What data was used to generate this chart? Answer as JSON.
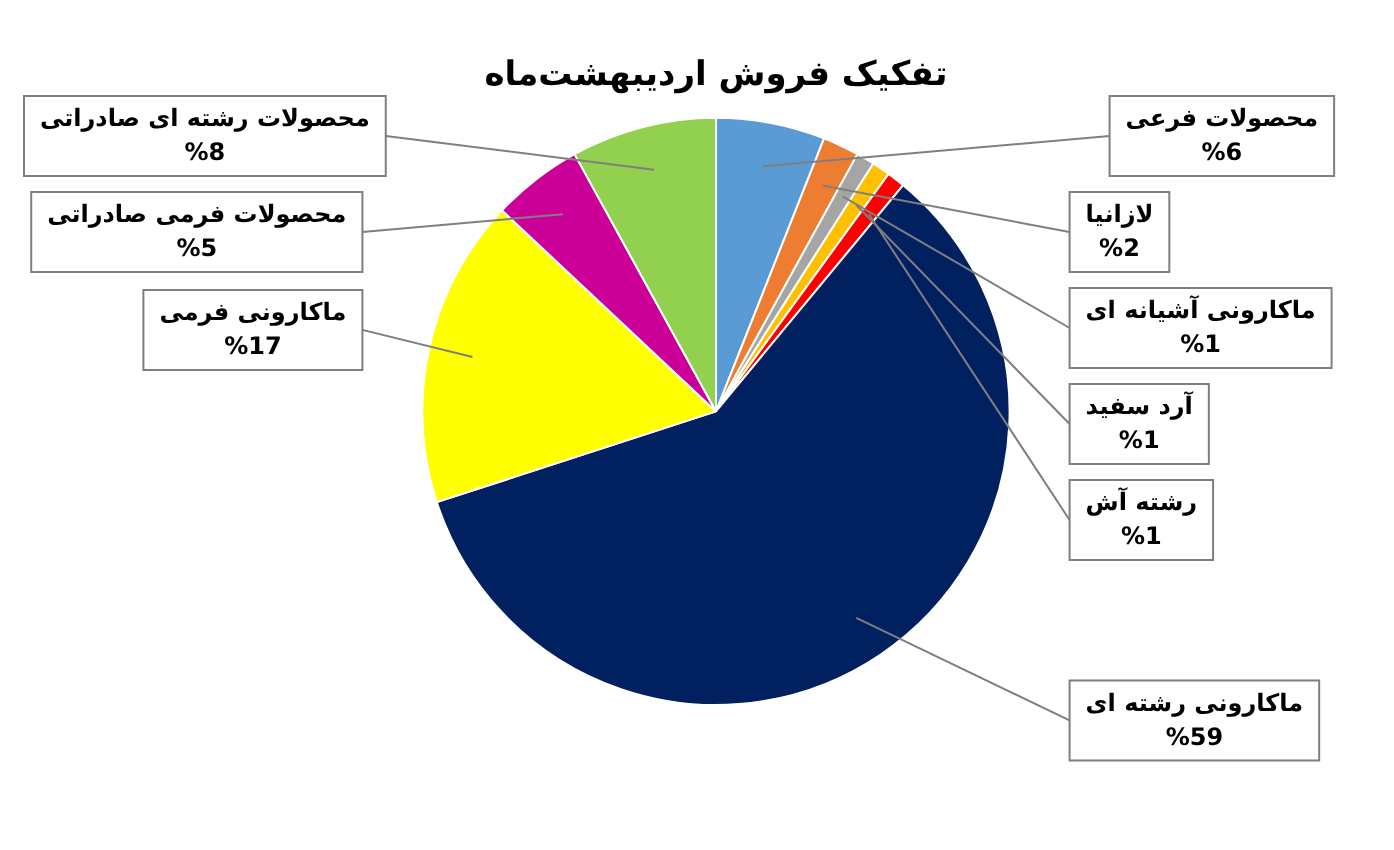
{
  "chart_data": {
    "type": "pie",
    "title": "تفکیک فروش اردیبهشت‌ماه",
    "categories": [
      "محصولات فرعی",
      "لازانیا",
      "ماکارونی آشیانه ای",
      "آرد سفید",
      "رشته آش",
      "ماکارونی رشته ای",
      "ماکارونی فرمی",
      "محصولات فرمی صادراتی",
      "محصولات رشته ای صادراتی"
    ],
    "values": [
      6,
      2,
      1,
      1,
      1,
      59,
      17,
      5,
      8
    ],
    "value_labels": [
      "%6",
      "%2",
      "%1",
      "%1",
      "%1",
      "%59",
      "%17",
      "%5",
      "%8"
    ],
    "colors": [
      "#5b9bd5",
      "#ed7d31",
      "#a5a5a5",
      "#ffc000",
      "#ff0000",
      "#002060",
      "#ffff00",
      "#cc0099",
      "#92d050"
    ],
    "legend": false
  }
}
